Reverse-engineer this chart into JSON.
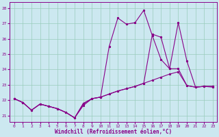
{
  "xlabel": "Windchill (Refroidissement éolien,°C)",
  "background_color": "#cce8f0",
  "line_color": "#880088",
  "grid_color": "#99ccbb",
  "xlim": [
    -0.5,
    23.5
  ],
  "ylim": [
    20.6,
    28.4
  ],
  "yticks": [
    21,
    22,
    23,
    24,
    25,
    26,
    27,
    28
  ],
  "xticks": [
    0,
    1,
    2,
    3,
    4,
    5,
    6,
    7,
    8,
    9,
    10,
    11,
    12,
    13,
    14,
    15,
    16,
    17,
    18,
    19,
    20,
    21,
    22,
    23
  ],
  "series1_x": [
    0,
    1,
    2,
    3,
    4,
    5,
    6,
    7,
    8,
    9,
    10,
    11,
    12,
    13,
    14,
    15,
    16,
    17,
    18,
    19,
    20,
    21,
    22,
    23
  ],
  "series1_y": [
    22.1,
    21.85,
    21.35,
    21.75,
    21.6,
    21.45,
    21.2,
    20.85,
    21.8,
    22.1,
    22.2,
    22.4,
    22.6,
    22.75,
    22.9,
    23.1,
    23.3,
    23.5,
    23.7,
    23.85,
    22.95,
    22.85,
    22.9,
    22.9
  ],
  "series2_x": [
    0,
    1,
    2,
    3,
    4,
    5,
    6,
    7,
    8,
    9,
    10,
    11,
    12,
    13,
    14,
    15,
    16,
    17,
    18,
    19,
    20,
    21,
    22,
    23
  ],
  "series2_y": [
    22.1,
    21.85,
    21.35,
    21.75,
    21.6,
    21.45,
    21.2,
    20.85,
    21.75,
    22.1,
    22.2,
    25.5,
    27.35,
    26.95,
    27.05,
    27.85,
    26.2,
    24.65,
    24.05,
    27.05,
    24.55,
    22.85,
    22.9,
    22.85
  ],
  "series3_x": [
    0,
    1,
    2,
    3,
    4,
    5,
    6,
    7,
    8,
    9,
    10,
    11,
    12,
    13,
    14,
    15,
    16,
    17,
    18,
    19,
    20,
    21,
    22,
    23
  ],
  "series3_y": [
    22.1,
    21.85,
    21.35,
    21.75,
    21.6,
    21.45,
    21.2,
    20.85,
    21.65,
    22.1,
    22.2,
    22.4,
    22.6,
    22.75,
    22.9,
    23.1,
    26.3,
    26.1,
    24.05,
    24.05,
    22.95,
    22.85,
    22.9,
    22.9
  ]
}
